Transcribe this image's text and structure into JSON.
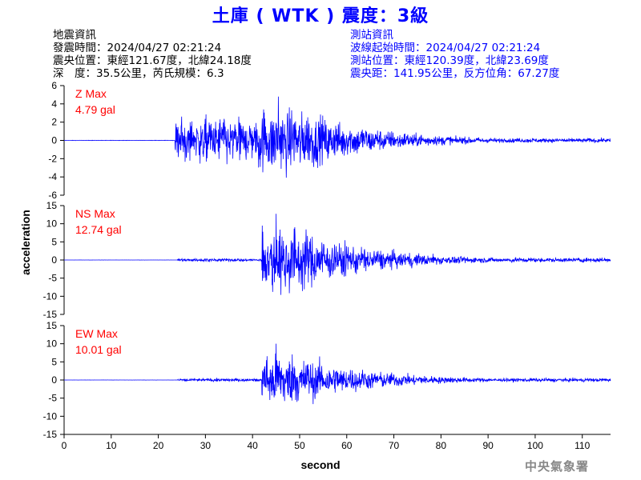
{
  "header": {
    "title": "土庫 ( WTK ) 震度：3級"
  },
  "quake_info": {
    "heading": "地震資訊",
    "origin_time": "發震時間：2024/04/27 02:21:24",
    "epicenter": "震央位置：東經121.67度，北緯24.18度",
    "depth_magnitude": "深　度：35.5公里，芮氏規模：6.3"
  },
  "station_info": {
    "heading": "測站資訊",
    "wave_start": "波線起始時間：2024/04/27 02:21:24",
    "location": "測站位置：東經120.39度，北緯23.69度",
    "distance": "震央距：141.95公里，反方位角：67.27度"
  },
  "watermark": "中央氣象署",
  "colors": {
    "trace": "#0000ff",
    "max_label": "#ff0000",
    "title": "#0000ff"
  },
  "chart_data": [
    {
      "type": "line",
      "component": "Z",
      "max_label": "Z Max",
      "max_value": "4.79 gal",
      "peak": 4.79,
      "ylim": [
        -6,
        6
      ],
      "yticks": [
        -6,
        -4,
        -2,
        0,
        2,
        4,
        6
      ],
      "onset": 23.5,
      "strong_start": 41,
      "strong_end": 50,
      "pre_amp": 3.0,
      "xlim": [
        0,
        116
      ],
      "xlabel": "second",
      "ylabel": "acceleration"
    },
    {
      "type": "line",
      "component": "NS",
      "max_label": "NS Max",
      "max_value": "12.74 gal",
      "peak": 12.74,
      "ylim": [
        -15,
        15
      ],
      "yticks": [
        -15,
        -10,
        -5,
        0,
        5,
        10,
        15
      ],
      "onset": 24,
      "strong_start": 42,
      "strong_end": 48,
      "pre_amp": 0.5,
      "xlim": [
        0,
        116
      ],
      "xlabel": "second",
      "ylabel": "acceleration"
    },
    {
      "type": "line",
      "component": "EW",
      "max_label": "EW Max",
      "max_value": "10.01 gal",
      "peak": 10.01,
      "ylim": [
        -15,
        15
      ],
      "yticks": [
        -15,
        -10,
        -5,
        0,
        5,
        10,
        15
      ],
      "onset": 24,
      "strong_start": 42,
      "strong_end": 48,
      "pre_amp": 0.5,
      "xlim": [
        0,
        116
      ],
      "xlabel": "second",
      "ylabel": "acceleration"
    }
  ],
  "x_axis": {
    "ticks": [
      0,
      10,
      20,
      30,
      40,
      50,
      60,
      70,
      80,
      90,
      100,
      110
    ],
    "label": "second",
    "ylabel": "acceleration"
  }
}
